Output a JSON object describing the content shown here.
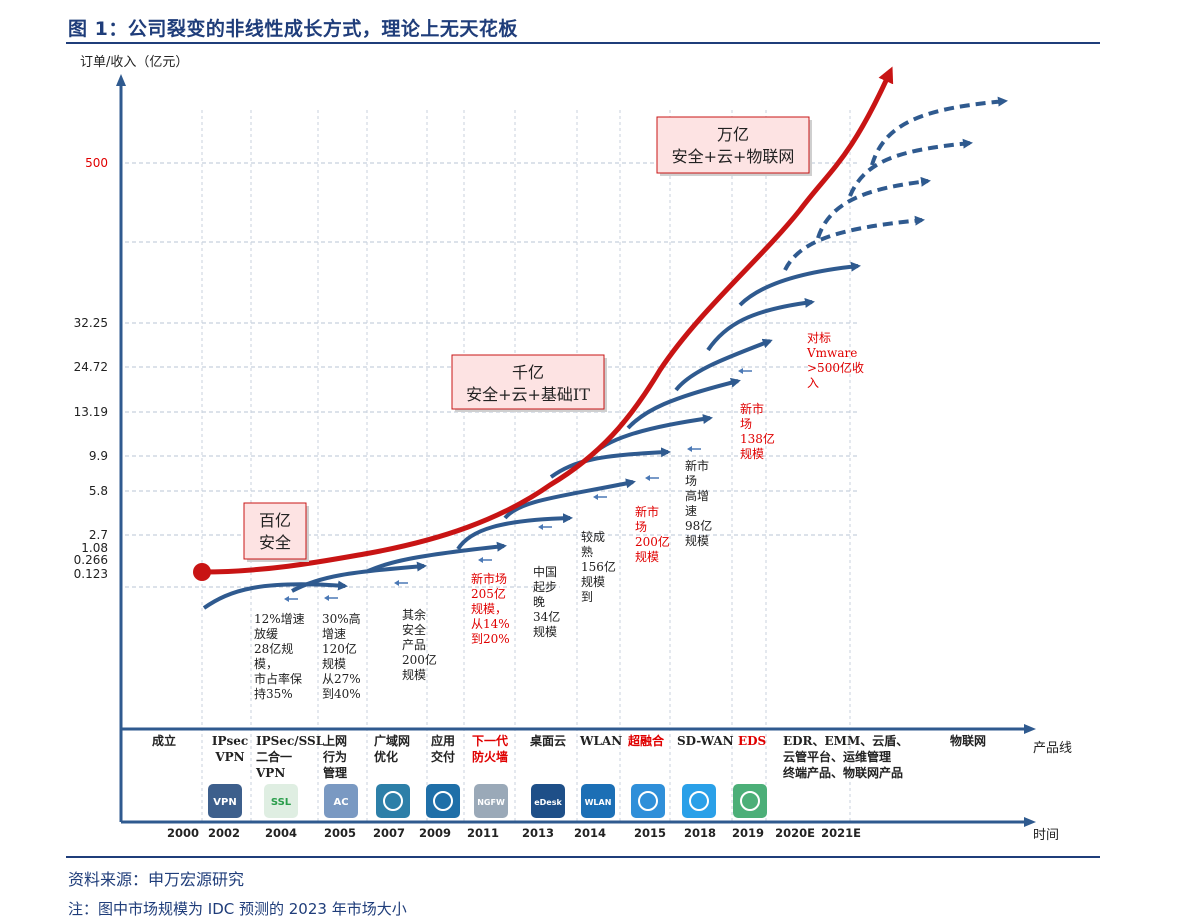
{
  "title": "图 1：公司裂变的非线性成长方式，理论上无天花板",
  "source": "资料来源：申万宏源研究",
  "note": "注：图中市场规模为 IDC 预测的 2023 年市场大小",
  "colors": {
    "brand_blue": "#1f3d7a",
    "arrow_blue": "#2f5a8f",
    "growth_red": "#c81414",
    "label_red": "#e00000",
    "box_fill": "#fde3e3"
  },
  "chart_data": {
    "type": "line",
    "ylabel": "订单/收入（亿元）",
    "xlabel": "时间",
    "product_axis_label": "产品线",
    "y_ticks": [
      "500",
      "32.25",
      "24.72",
      "13.19",
      "9.9",
      "5.8",
      "2.7",
      "1.08",
      "0.266",
      "0.123"
    ],
    "y_tick_colors": [
      "#e00000",
      "#222",
      "#222",
      "#222",
      "#222",
      "#222",
      "#222",
      "#222",
      "#222",
      "#222"
    ],
    "years": [
      "2000",
      "2002",
      "2004",
      "2005",
      "2007",
      "2009",
      "2011",
      "2013",
      "2014",
      "2015",
      "2018",
      "2019",
      "2020E",
      "2021E"
    ],
    "products": [
      {
        "label": "成立",
        "red": false
      },
      {
        "label": "IPsec VPN",
        "red": false
      },
      {
        "label": "IPSec/SSL 二合一 VPN",
        "red": false
      },
      {
        "label": "上网 行为 管理",
        "red": false
      },
      {
        "label": "广域网 优化",
        "red": false
      },
      {
        "label": "应用 交付",
        "red": false
      },
      {
        "label": "下一代 防火墙",
        "red": true
      },
      {
        "label": "桌面云",
        "red": false
      },
      {
        "label": "WLAN",
        "red": false
      },
      {
        "label": "超融合",
        "red": true
      },
      {
        "label": "SD-WAN",
        "red": false
      },
      {
        "label": "EDS",
        "red": true
      },
      {
        "label": "EDR、EMM、云盾、 云管平台、运维管理 终端产品、物联网产品",
        "red": false
      },
      {
        "label": "物联网",
        "red": false
      }
    ],
    "icons": [
      "VPN",
      "SSL",
      "AC",
      "",
      "",
      "NGFW",
      "eDesk",
      "WLAN",
      "",
      "",
      ""
    ],
    "stage_boxes": [
      {
        "title": "百亿",
        "subtitle": "安全"
      },
      {
        "title": "千亿",
        "subtitle": "安全+云+基础IT"
      },
      {
        "title": "万亿",
        "subtitle": "安全+云+物联网"
      }
    ],
    "annotations": [
      {
        "text": "12%增速 放缓 28亿规 模， 市占率保 持35%",
        "red": false
      },
      {
        "text": "30%高 增速 120亿 规模 从27% 到40%",
        "red": false
      },
      {
        "text": "其余 安全 产品 200亿 规模",
        "red": false
      },
      {
        "text": "新市场 205亿 规模， 从14% 到20%",
        "red": true
      },
      {
        "text": "中国 起步 晚 34亿 规模",
        "red": false
      },
      {
        "text": "较成 熟 156亿 规模 到",
        "red": false
      },
      {
        "text": "新市 场 200亿 规模",
        "red": true
      },
      {
        "text": "新市 场 高增 速 98亿 规模",
        "red": false
      },
      {
        "text": "新市 场 138亿 规模",
        "red": true
      },
      {
        "text": "对标 Vmware >500亿收 入",
        "red": true
      }
    ]
  }
}
